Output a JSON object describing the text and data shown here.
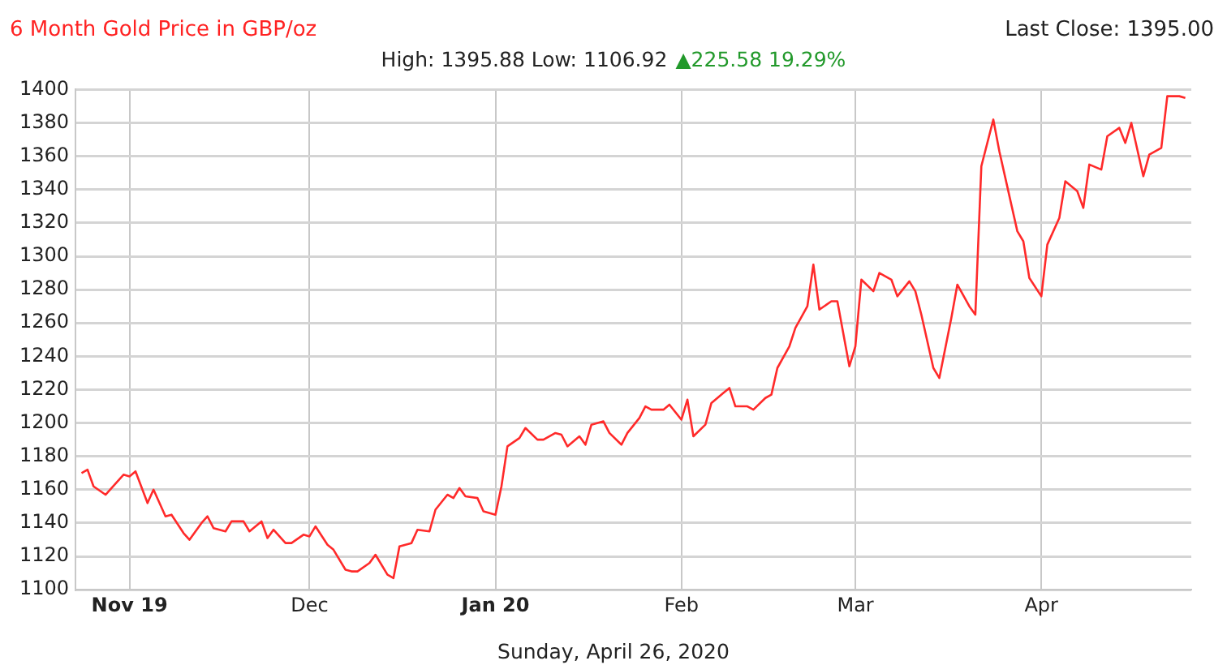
{
  "chart_data": {
    "type": "line",
    "title": "6 Month Gold Price in GBP/oz",
    "subtitle": "High: 1395.88 Low: 1106.92",
    "xlabel": "Sunday, April 26, 2020",
    "annotations": [
      "Last Close: 1395.00",
      "▲225.58 19.29%"
    ],
    "x": [
      "2019-10-24",
      "2019-10-25",
      "2019-10-26",
      "2019-10-28",
      "2019-10-29",
      "2019-10-31",
      "2019-11-01",
      "2019-11-02",
      "2019-11-04",
      "2019-11-05",
      "2019-11-07",
      "2019-11-08",
      "2019-11-10",
      "2019-11-11",
      "2019-11-13",
      "2019-11-14",
      "2019-11-15",
      "2019-11-17",
      "2019-11-18",
      "2019-11-20",
      "2019-11-21",
      "2019-11-23",
      "2019-11-24",
      "2019-11-25",
      "2019-11-27",
      "2019-11-28",
      "2019-11-30",
      "2019-12-01",
      "2019-12-02",
      "2019-12-04",
      "2019-12-05",
      "2019-12-07",
      "2019-12-08",
      "2019-12-09",
      "2019-12-11",
      "2019-12-12",
      "2019-12-14",
      "2019-12-15",
      "2019-12-16",
      "2019-12-18",
      "2019-12-19",
      "2019-12-21",
      "2019-12-22",
      "2019-12-24",
      "2019-12-25",
      "2019-12-26",
      "2019-12-27",
      "2019-12-29",
      "2019-12-30",
      "2020-01-01",
      "2020-01-02",
      "2020-01-03",
      "2020-01-05",
      "2020-01-06",
      "2020-01-08",
      "2020-01-09",
      "2020-01-11",
      "2020-01-12",
      "2020-01-13",
      "2020-01-15",
      "2020-01-16",
      "2020-01-17",
      "2020-01-19",
      "2020-01-20",
      "2020-01-22",
      "2020-01-23",
      "2020-01-25",
      "2020-01-26",
      "2020-01-27",
      "2020-01-29",
      "2020-01-30",
      "2020-02-01",
      "2020-02-02",
      "2020-02-03",
      "2020-02-05",
      "2020-02-06",
      "2020-02-08",
      "2020-02-09",
      "2020-02-10",
      "2020-02-12",
      "2020-02-13",
      "2020-02-15",
      "2020-02-16",
      "2020-02-17",
      "2020-02-19",
      "2020-02-20",
      "2020-02-22",
      "2020-02-23",
      "2020-02-24",
      "2020-02-26",
      "2020-02-27",
      "2020-02-29",
      "2020-03-01",
      "2020-03-02",
      "2020-03-04",
      "2020-03-05",
      "2020-03-07",
      "2020-03-08",
      "2020-03-10",
      "2020-03-11",
      "2020-03-12",
      "2020-03-14",
      "2020-03-15",
      "2020-03-17",
      "2020-03-18",
      "2020-03-20",
      "2020-03-21",
      "2020-03-22",
      "2020-03-24",
      "2020-03-25",
      "2020-03-26",
      "2020-03-28",
      "2020-03-29",
      "2020-03-30",
      "2020-04-01",
      "2020-04-02",
      "2020-04-04",
      "2020-04-05",
      "2020-04-07",
      "2020-04-08",
      "2020-04-09",
      "2020-04-11",
      "2020-04-12",
      "2020-04-14",
      "2020-04-15",
      "2020-04-16",
      "2020-04-18",
      "2020-04-19",
      "2020-04-21",
      "2020-04-22",
      "2020-04-24",
      "2020-04-25"
    ],
    "series": [
      {
        "color": "#ff2a2a",
        "values": [
          1170,
          1172,
          1162,
          1157,
          1161,
          1169,
          1168,
          1171,
          1152,
          1160,
          1144,
          1145,
          1134,
          1130,
          1140,
          1144,
          1137,
          1135,
          1141,
          1141,
          1135,
          1141,
          1131,
          1136,
          1128,
          1128,
          1133,
          1132,
          1138,
          1127,
          1124,
          1112,
          1111,
          1111,
          1116,
          1121,
          1109,
          1107,
          1126,
          1128,
          1136,
          1135,
          1148,
          1157,
          1155,
          1161,
          1156,
          1155,
          1147,
          1145,
          1162,
          1186,
          1191,
          1197,
          1190,
          1190,
          1194,
          1193,
          1186,
          1192,
          1187,
          1199,
          1201,
          1194,
          1187,
          1194,
          1203,
          1210,
          1208,
          1208,
          1211,
          1202,
          1214,
          1192,
          1199,
          1212,
          1218,
          1221,
          1210,
          1210,
          1208,
          1215,
          1217,
          1233,
          1246,
          1257,
          1270,
          1295,
          1268,
          1273,
          1273,
          1234,
          1246,
          1286,
          1279,
          1290,
          1286,
          1276,
          1285,
          1279,
          1265,
          1233,
          1227,
          1263,
          1283,
          1270,
          1265,
          1354,
          1382,
          1363,
          1347,
          1315,
          1309,
          1287,
          1276,
          1307,
          1323,
          1345,
          1339,
          1329,
          1355,
          1352,
          1372,
          1377,
          1368,
          1380,
          1348,
          1361,
          1365,
          1396,
          1396,
          1395
        ]
      }
    ],
    "xlim": [
      "2019-10-23",
      "2020-04-26"
    ],
    "xticks": [
      {
        "value": "2019-11-01",
        "label": "Nov 19"
      },
      {
        "value": "2019-12-01",
        "label": "Dec"
      },
      {
        "value": "2020-01-01",
        "label": "Jan 20"
      },
      {
        "value": "2020-02-01",
        "label": "Feb"
      },
      {
        "value": "2020-03-01",
        "label": "Mar"
      },
      {
        "value": "2020-04-01",
        "label": "Apr"
      }
    ],
    "ylim": [
      1100,
      1400
    ],
    "yticks": [
      1100,
      1120,
      1140,
      1160,
      1180,
      1200,
      1220,
      1240,
      1260,
      1280,
      1300,
      1320,
      1340,
      1360,
      1380,
      1400
    ],
    "grid": true
  }
}
